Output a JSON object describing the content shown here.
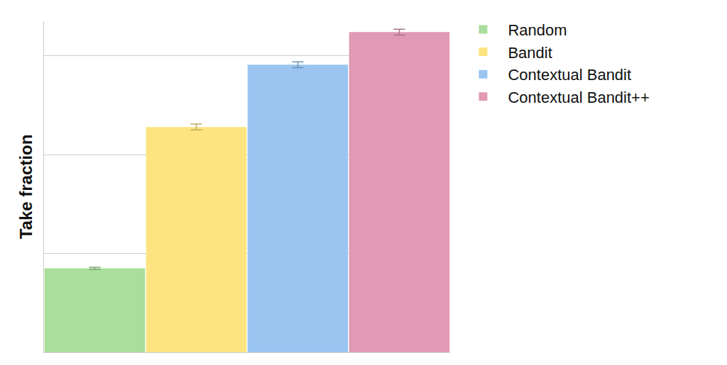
{
  "chart_data": {
    "type": "bar",
    "y_label": "Take fraction",
    "series": [
      {
        "name": "Random",
        "color": "#a9de9b",
        "values": [
          0.085
        ],
        "error": [
          0.001
        ]
      },
      {
        "name": "Bandit",
        "color": "#fde480",
        "values": [
          0.228
        ],
        "error": [
          0.003
        ]
      },
      {
        "name": "Contextual Bandit",
        "color": "#99c5f0",
        "values": [
          0.291
        ],
        "error": [
          0.003
        ]
      },
      {
        "name": "Contextual Bandit++",
        "color": "#e09ab4",
        "values": [
          0.324
        ],
        "error": [
          0.003
        ]
      }
    ],
    "ylim": [
      0,
      0.335
    ],
    "yticks": [
      0,
      0.1,
      0.2,
      0.3
    ],
    "grid": true,
    "legend": "right",
    "tick_labels": false
  }
}
